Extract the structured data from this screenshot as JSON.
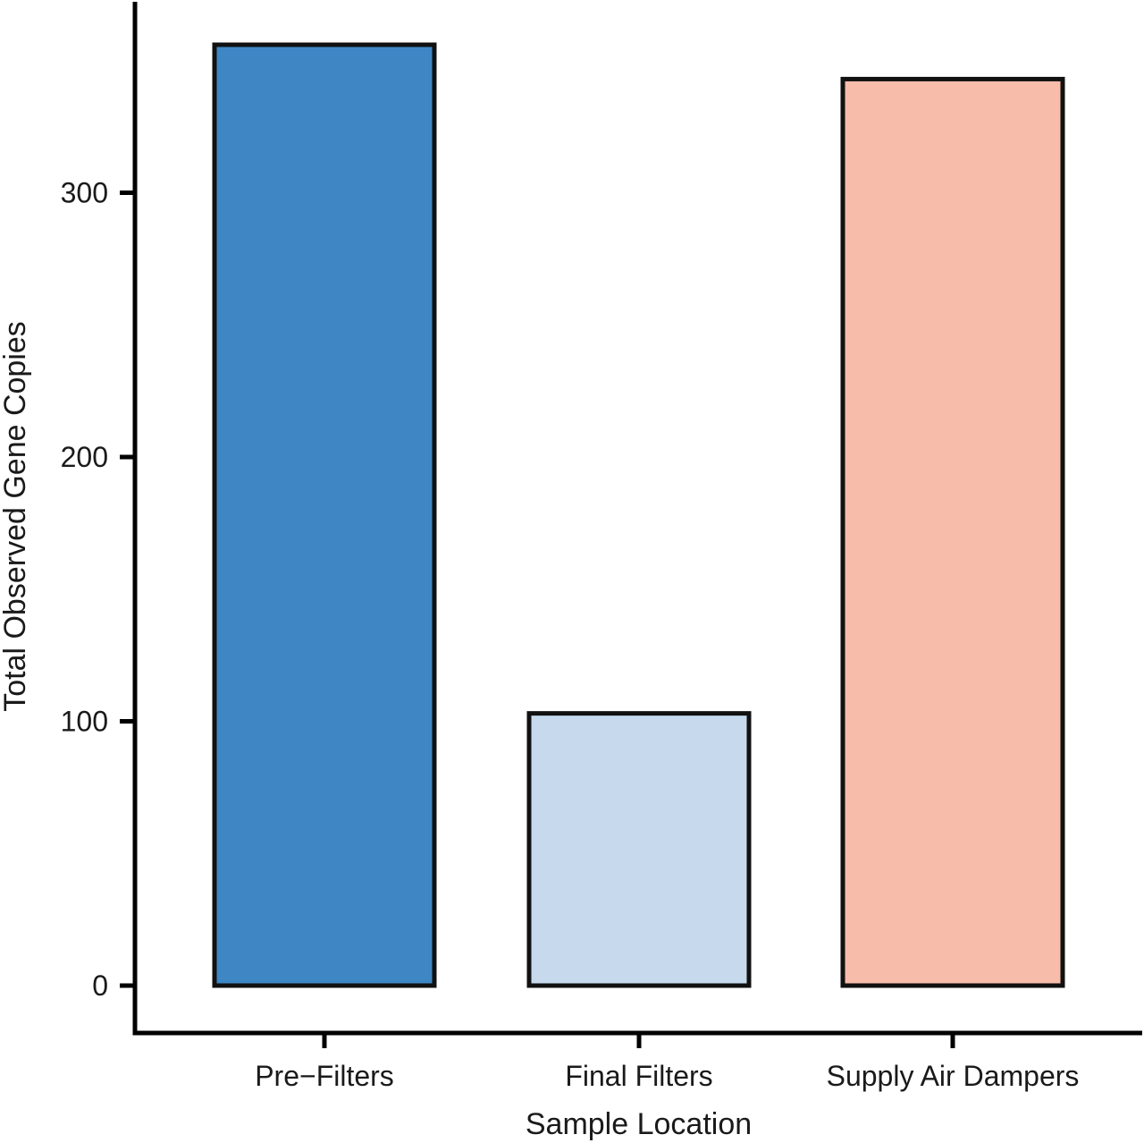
{
  "chart_data": {
    "type": "bar",
    "title": "",
    "xlabel": "Sample Location",
    "ylabel": "Total Observed Gene Copies",
    "categories": [
      "Pre−Filters",
      "Final Filters",
      "Supply Air Dampers"
    ],
    "values": [
      356,
      103,
      343
    ],
    "colors": [
      "#3e87c4",
      "#c6d9ed",
      "#f8bcaa"
    ],
    "ylim": [
      -17.5,
      372
    ],
    "yticks": [
      0,
      100,
      200,
      300
    ],
    "ytick_labels": [
      "0",
      "100",
      "200",
      "300"
    ],
    "grid": false,
    "legend": "none"
  }
}
